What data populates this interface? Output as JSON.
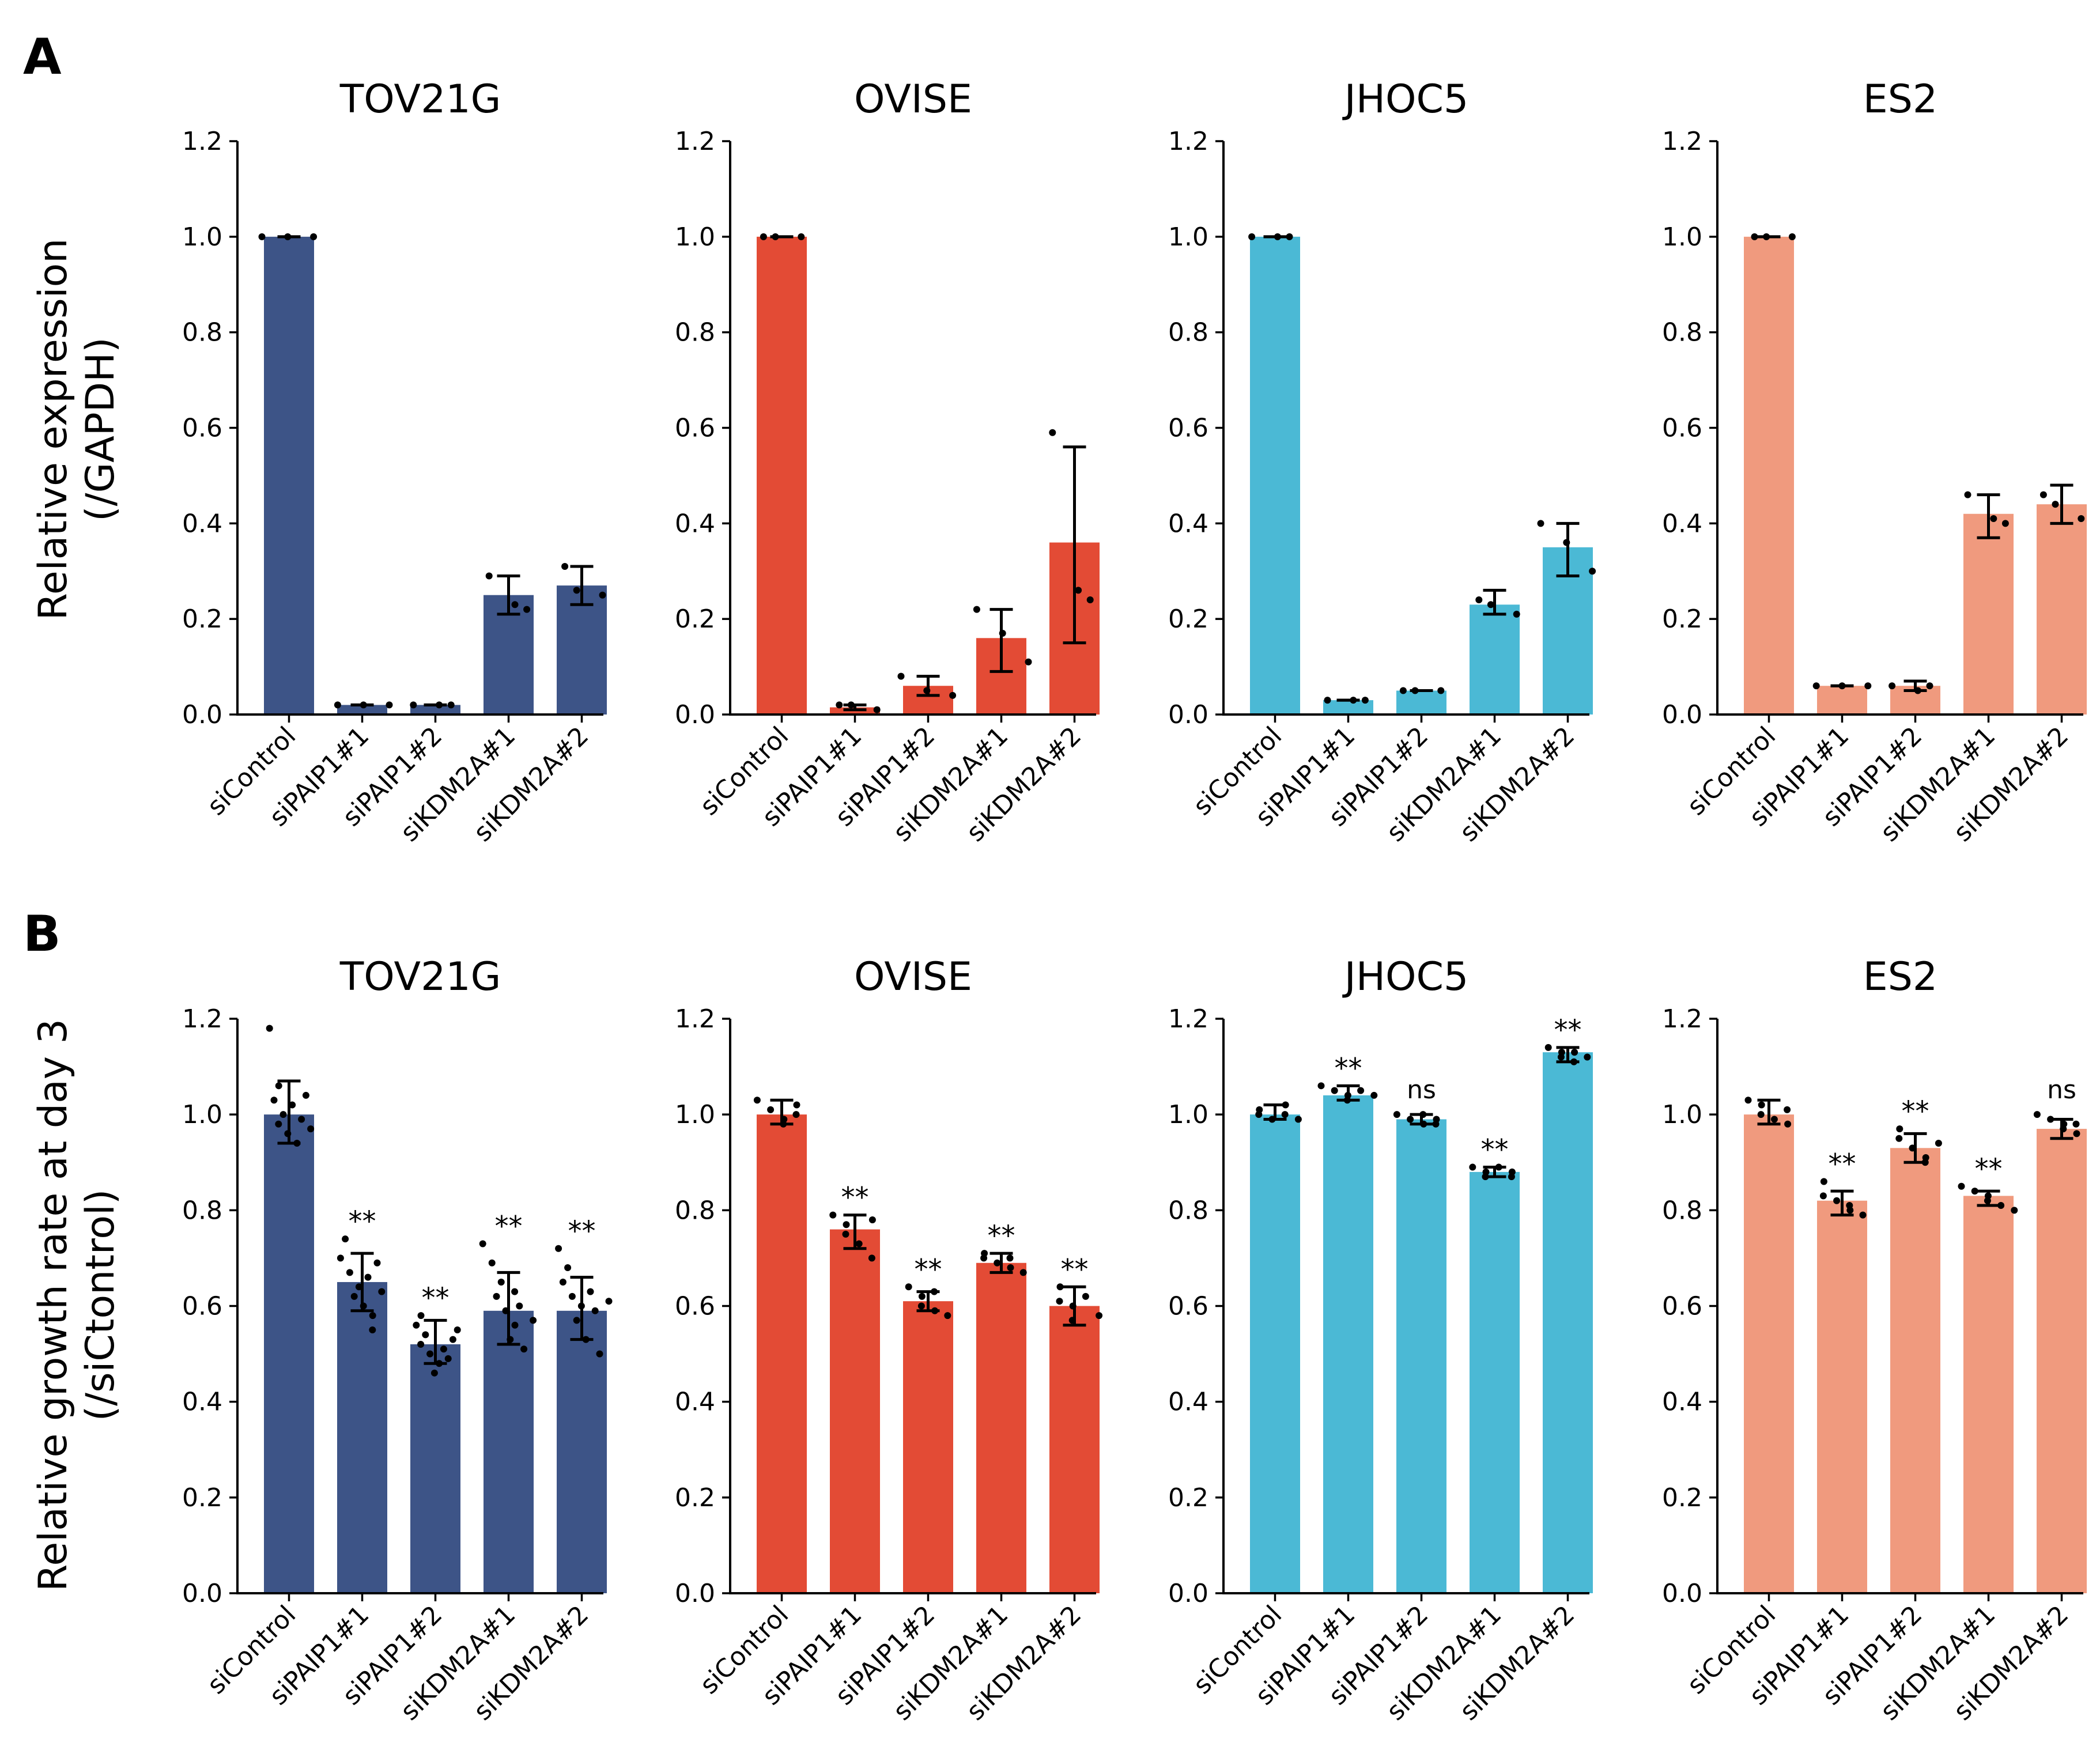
{
  "figure": {
    "panel_labels": [
      "A",
      "B"
    ],
    "row_ylabels": [
      [
        "Relative expression",
        "(/GAPDH)"
      ],
      [
        "Relative growth rate at day 3",
        "(/siCtontrol)"
      ]
    ]
  },
  "chart_data": [
    {
      "type": "bar",
      "row": 0,
      "col": 0,
      "title": "TOV21G",
      "color": "#3d5487",
      "categories": [
        "siControl",
        "siPAIP1#1",
        "siPAIP1#2",
        "siKDM2A#1",
        "siKDM2A#2"
      ],
      "values": [
        1.0,
        0.02,
        0.02,
        0.25,
        0.27
      ],
      "err_low": [
        1.0,
        0.02,
        0.02,
        0.21,
        0.23
      ],
      "err_high": [
        1.0,
        0.02,
        0.02,
        0.29,
        0.31
      ],
      "points": [
        [
          1.0,
          1.0,
          1.0
        ],
        [
          0.02,
          0.02,
          0.02
        ],
        [
          0.02,
          0.02,
          0.02
        ],
        [
          0.29,
          0.23,
          0.22
        ],
        [
          0.31,
          0.26,
          0.25
        ]
      ],
      "significance": [
        "",
        "",
        "",
        "",
        ""
      ],
      "ylim": [
        0,
        1.2
      ],
      "yticks": [
        "0.0",
        "0.2",
        "0.4",
        "0.6",
        "0.8",
        "1.0",
        "1.2"
      ]
    },
    {
      "type": "bar",
      "row": 0,
      "col": 1,
      "title": "OVISE",
      "color": "#e34b35",
      "categories": [
        "siControl",
        "siPAIP1#1",
        "siPAIP1#2",
        "siKDM2A#1",
        "siKDM2A#2"
      ],
      "values": [
        1.0,
        0.015,
        0.06,
        0.16,
        0.36
      ],
      "err_low": [
        1.0,
        0.01,
        0.04,
        0.09,
        0.15
      ],
      "err_high": [
        1.0,
        0.02,
        0.08,
        0.22,
        0.56
      ],
      "points": [
        [
          1.0,
          1.0,
          1.0
        ],
        [
          0.02,
          0.02,
          0.01
        ],
        [
          0.08,
          0.05,
          0.04
        ],
        [
          0.22,
          0.17,
          0.11
        ],
        [
          0.59,
          0.26,
          0.24
        ]
      ],
      "significance": [
        "",
        "",
        "",
        "",
        ""
      ],
      "ylim": [
        0,
        1.2
      ],
      "yticks": [
        "0.0",
        "0.2",
        "0.4",
        "0.6",
        "0.8",
        "1.0",
        "1.2"
      ]
    },
    {
      "type": "bar",
      "row": 0,
      "col": 2,
      "title": "JHOC5",
      "color": "#4bb9d5",
      "categories": [
        "siControl",
        "siPAIP1#1",
        "siPAIP1#2",
        "siKDM2A#1",
        "siKDM2A#2"
      ],
      "values": [
        1.0,
        0.03,
        0.05,
        0.23,
        0.35
      ],
      "err_low": [
        1.0,
        0.03,
        0.05,
        0.21,
        0.29
      ],
      "err_high": [
        1.0,
        0.03,
        0.05,
        0.26,
        0.4
      ],
      "points": [
        [
          1.0,
          1.0,
          1.0
        ],
        [
          0.03,
          0.03,
          0.03
        ],
        [
          0.05,
          0.05,
          0.05
        ],
        [
          0.24,
          0.23,
          0.21
        ],
        [
          0.4,
          0.36,
          0.3
        ]
      ],
      "significance": [
        "",
        "",
        "",
        "",
        ""
      ],
      "ylim": [
        0,
        1.2
      ],
      "yticks": [
        "0.0",
        "0.2",
        "0.4",
        "0.6",
        "0.8",
        "1.0",
        "1.2"
      ]
    },
    {
      "type": "bar",
      "row": 0,
      "col": 3,
      "title": "ES2",
      "color": "#f09a7e",
      "categories": [
        "siControl",
        "siPAIP1#1",
        "siPAIP1#2",
        "siKDM2A#1",
        "siKDM2A#2"
      ],
      "values": [
        1.0,
        0.06,
        0.06,
        0.42,
        0.44
      ],
      "err_low": [
        1.0,
        0.06,
        0.05,
        0.37,
        0.4
      ],
      "err_high": [
        1.0,
        0.06,
        0.07,
        0.46,
        0.48
      ],
      "points": [
        [
          1.0,
          1.0,
          1.0
        ],
        [
          0.06,
          0.06,
          0.06
        ],
        [
          0.06,
          0.05,
          0.06
        ],
        [
          0.46,
          0.41,
          0.4
        ],
        [
          0.46,
          0.44,
          0.41
        ]
      ],
      "significance": [
        "",
        "",
        "",
        "",
        ""
      ],
      "ylim": [
        0,
        1.2
      ],
      "yticks": [
        "0.0",
        "0.2",
        "0.4",
        "0.6",
        "0.8",
        "1.0",
        "1.2"
      ]
    },
    {
      "type": "bar",
      "row": 1,
      "col": 0,
      "title": "TOV21G",
      "color": "#3d5487",
      "categories": [
        "siControl",
        "siPAIP1#1",
        "siPAIP1#2",
        "siKDM2A#1",
        "siKDM2A#2"
      ],
      "values": [
        1.0,
        0.65,
        0.52,
        0.59,
        0.59
      ],
      "err_low": [
        0.94,
        0.59,
        0.48,
        0.52,
        0.53
      ],
      "err_high": [
        1.07,
        0.71,
        0.57,
        0.67,
        0.66
      ],
      "points": [
        [
          1.18,
          1.06,
          1.03,
          1.0,
          0.98,
          0.96,
          0.94,
          1.02,
          0.99,
          0.97,
          1.04
        ],
        [
          0.74,
          0.7,
          0.67,
          0.64,
          0.62,
          0.6,
          0.58,
          0.66,
          0.69,
          0.55,
          0.63
        ],
        [
          0.58,
          0.56,
          0.54,
          0.52,
          0.5,
          0.48,
          0.46,
          0.51,
          0.53,
          0.49,
          0.55
        ],
        [
          0.73,
          0.69,
          0.65,
          0.62,
          0.59,
          0.56,
          0.53,
          0.6,
          0.63,
          0.51,
          0.57
        ],
        [
          0.72,
          0.68,
          0.65,
          0.62,
          0.6,
          0.57,
          0.53,
          0.59,
          0.63,
          0.5,
          0.61
        ]
      ],
      "significance": [
        "",
        "**",
        "**",
        "**",
        "**"
      ],
      "ylim": [
        0,
        1.2
      ],
      "yticks": [
        "0.0",
        "0.2",
        "0.4",
        "0.6",
        "0.8",
        "1.0",
        "1.2"
      ]
    },
    {
      "type": "bar",
      "row": 1,
      "col": 1,
      "title": "OVISE",
      "color": "#e34b35",
      "categories": [
        "siControl",
        "siPAIP1#1",
        "siPAIP1#2",
        "siKDM2A#1",
        "siKDM2A#2"
      ],
      "values": [
        1.0,
        0.76,
        0.61,
        0.69,
        0.6
      ],
      "err_low": [
        0.98,
        0.72,
        0.59,
        0.67,
        0.56
      ],
      "err_high": [
        1.03,
        0.79,
        0.63,
        0.71,
        0.64
      ],
      "points": [
        [
          1.03,
          1.01,
          0.99,
          0.98,
          1.02,
          1.0
        ],
        [
          0.79,
          0.77,
          0.75,
          0.73,
          0.78,
          0.7
        ],
        [
          0.64,
          0.62,
          0.6,
          0.59,
          0.63,
          0.58
        ],
        [
          0.71,
          0.7,
          0.69,
          0.68,
          0.7,
          0.67
        ],
        [
          0.64,
          0.61,
          0.6,
          0.57,
          0.62,
          0.58
        ]
      ],
      "significance": [
        "",
        "**",
        "**",
        "**",
        "**"
      ],
      "ylim": [
        0,
        1.2
      ],
      "yticks": [
        "0.0",
        "0.2",
        "0.4",
        "0.6",
        "0.8",
        "1.0",
        "1.2"
      ]
    },
    {
      "type": "bar",
      "row": 1,
      "col": 2,
      "title": "JHOC5",
      "color": "#4bb9d5",
      "categories": [
        "siControl",
        "siPAIP1#1",
        "siPAIP1#2",
        "siKDM2A#1",
        "siKDM2A#2"
      ],
      "values": [
        1.0,
        1.04,
        0.99,
        0.88,
        1.13
      ],
      "err_low": [
        0.99,
        1.03,
        0.98,
        0.87,
        1.11
      ],
      "err_high": [
        1.02,
        1.06,
        1.0,
        0.89,
        1.14
      ],
      "points": [
        [
          1.01,
          1.0,
          0.99,
          1.02,
          1.0,
          0.99
        ],
        [
          1.06,
          1.05,
          1.04,
          1.03,
          1.05,
          1.04
        ],
        [
          1.0,
          0.99,
          0.98,
          1.0,
          0.99,
          0.98
        ],
        [
          0.89,
          0.88,
          0.87,
          0.89,
          0.88,
          0.87
        ],
        [
          1.14,
          1.13,
          1.12,
          1.13,
          1.11,
          1.12
        ]
      ],
      "significance": [
        "",
        "**",
        "ns",
        "**",
        "**"
      ],
      "ylim": [
        0,
        1.2
      ],
      "yticks": [
        "0.0",
        "0.2",
        "0.4",
        "0.6",
        "0.8",
        "1.0",
        "1.2"
      ]
    },
    {
      "type": "bar",
      "row": 1,
      "col": 3,
      "title": "ES2",
      "color": "#f09a7e",
      "categories": [
        "siControl",
        "siPAIP1#1",
        "siPAIP1#2",
        "siKDM2A#1",
        "siKDM2A#2"
      ],
      "values": [
        1.0,
        0.82,
        0.93,
        0.83,
        0.97
      ],
      "err_low": [
        0.98,
        0.79,
        0.9,
        0.81,
        0.95
      ],
      "err_high": [
        1.03,
        0.84,
        0.96,
        0.84,
        0.99
      ],
      "points": [
        [
          1.03,
          1.02,
          1.0,
          0.99,
          0.98,
          1.01
        ],
        [
          0.86,
          0.83,
          0.82,
          0.8,
          0.81,
          0.79
        ],
        [
          0.97,
          0.95,
          0.93,
          0.91,
          0.9,
          0.94
        ],
        [
          0.85,
          0.84,
          0.83,
          0.82,
          0.81,
          0.8
        ],
        [
          1.0,
          0.99,
          0.98,
          0.97,
          0.96,
          0.98
        ]
      ],
      "significance": [
        "",
        "**",
        "**",
        "**",
        "ns"
      ],
      "ylim": [
        0,
        1.2
      ],
      "yticks": [
        "0.0",
        "0.2",
        "0.4",
        "0.6",
        "0.8",
        "1.0",
        "1.2"
      ]
    }
  ]
}
